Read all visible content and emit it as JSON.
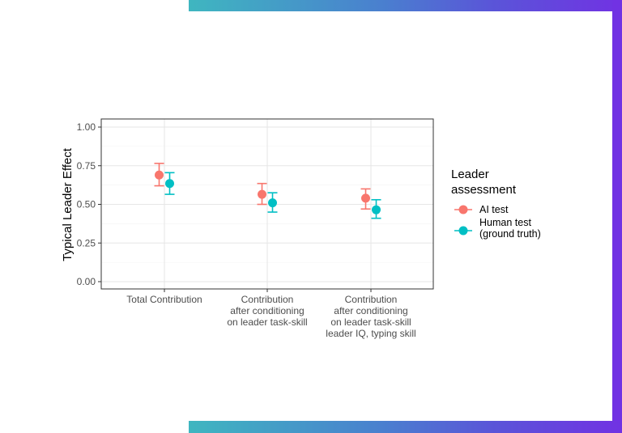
{
  "frame": {
    "gradient_start": "#3fb6c0",
    "gradient_end": "#7132e3"
  },
  "chart_data": {
    "type": "scatter",
    "subtype": "point-with-errorbars",
    "title": "",
    "xlabel": "",
    "ylabel": "Typical Leader Effect",
    "ylim": [
      0,
      1
    ],
    "yticks": [
      "0.00",
      "0.25",
      "0.50",
      "0.75",
      "1.00"
    ],
    "grid": true,
    "legend_position": "right",
    "legend_title": "Leader assessment",
    "categories": [
      [
        "Total Contribution"
      ],
      [
        "Contribution",
        "after conditioning",
        "on leader task-skill"
      ],
      [
        "Contribution",
        "after conditioning",
        "on leader task-skill",
        "leader IQ, typing skill"
      ]
    ],
    "series": [
      {
        "name": "AI test",
        "legend_lines": [
          "AI test"
        ],
        "color": "#f8766d",
        "values": [
          0.69,
          0.565,
          0.54
        ],
        "lower": [
          0.62,
          0.5,
          0.47
        ],
        "upper": [
          0.765,
          0.635,
          0.6
        ]
      },
      {
        "name": "Human test (ground truth)",
        "legend_lines": [
          "Human test",
          "(ground truth)"
        ],
        "color": "#00bfc4",
        "values": [
          0.635,
          0.51,
          0.465
        ],
        "lower": [
          0.565,
          0.45,
          0.41
        ],
        "upper": [
          0.705,
          0.575,
          0.53
        ]
      }
    ]
  }
}
